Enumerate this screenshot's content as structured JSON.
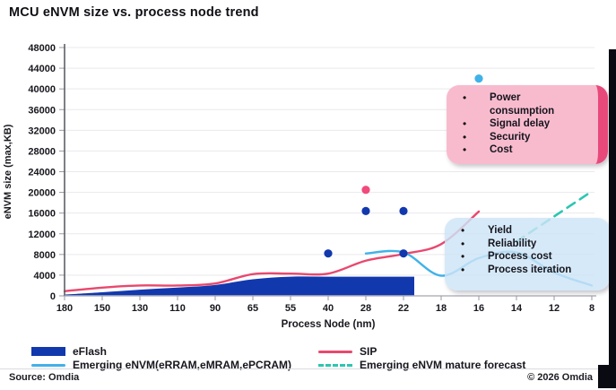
{
  "title": "MCU eNVM size vs. process node trend",
  "chart_data": {
    "type": "line",
    "title": "MCU eNVM size vs. process node trend",
    "xlabel": "Process Node (nm)",
    "ylabel": "eNVM size (max,KB)",
    "grid": true,
    "legend_position": "bottom",
    "categories": [
      "180",
      "150",
      "130",
      "110",
      "90",
      "65",
      "55",
      "40",
      "28",
      "22",
      "18",
      "16",
      "14",
      "12",
      "8"
    ],
    "y_axis": {
      "min": 0,
      "max": 48000,
      "step": 4000
    },
    "series": [
      {
        "name": "eFlash",
        "type": "area",
        "color": "#1238ae",
        "values": [
          250,
          700,
          1200,
          1600,
          2100,
          3200,
          3700,
          3700,
          3700,
          3700,
          null,
          null,
          null,
          null,
          null
        ]
      },
      {
        "name": "SIP",
        "type": "line",
        "color": "#e9486e",
        "values": [
          900,
          1600,
          2000,
          2000,
          2400,
          4200,
          4300,
          4300,
          6800,
          8100,
          10000,
          16300,
          null,
          null,
          null
        ]
      },
      {
        "name": "Emerging eNVM(eRRAM,eMRAM,ePCRAM)",
        "type": "line",
        "color": "#41b2e8",
        "values": [
          null,
          null,
          null,
          null,
          null,
          null,
          null,
          null,
          8200,
          8400,
          3900,
          7300,
          8400,
          4500,
          2000
        ]
      },
      {
        "name": "Emerging eNVM mature forecast",
        "type": "dashed-line",
        "color": "#2cc6b1",
        "values": [
          null,
          null,
          null,
          null,
          null,
          null,
          null,
          null,
          null,
          null,
          null,
          null,
          10500,
          15350,
          20200
        ]
      }
    ],
    "points": [
      {
        "node": "40",
        "value": 8200,
        "color": "#1238ae"
      },
      {
        "node": "28",
        "value": 16400,
        "color": "#1238ae"
      },
      {
        "node": "28",
        "value": 20500,
        "color": "#f14a7c"
      },
      {
        "node": "22",
        "value": 16400,
        "color": "#1238ae"
      },
      {
        "node": "22",
        "value": 8200,
        "color": "#1238ae"
      },
      {
        "node": "16",
        "value": 42000,
        "color": "#41b2e8"
      }
    ]
  },
  "annotations": {
    "drawbacks": {
      "bg": "#f8b7cbf2",
      "edge": "#e8497b",
      "items": [
        "Power consumption",
        "Signal delay",
        "Security",
        "Cost"
      ]
    },
    "challenges": {
      "bg": "#cde4f6d2",
      "items": [
        "Yield",
        "Reliability",
        "Process cost",
        "Process iteration"
      ]
    }
  },
  "footer": {
    "source": "Source: Omdia",
    "copyright": "© 2026 Omdia"
  }
}
